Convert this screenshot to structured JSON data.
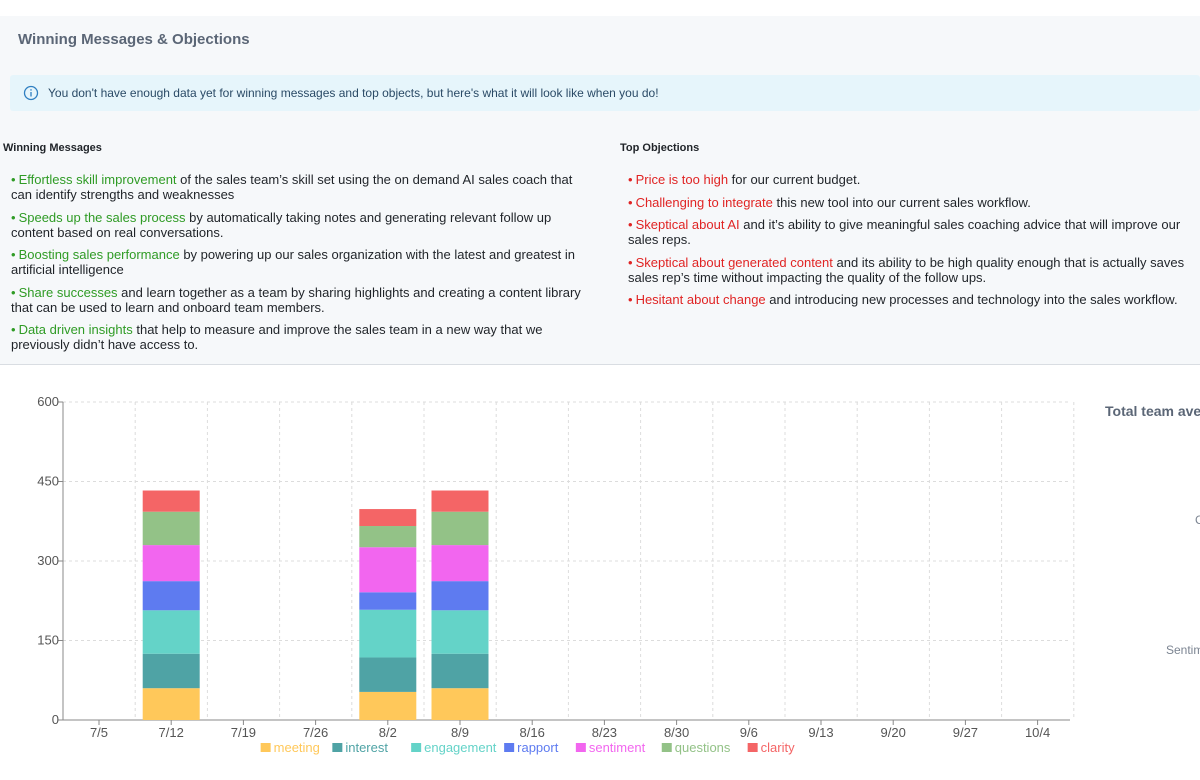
{
  "card": {
    "title": "Winning Messages & Objections",
    "info_icon": "info-circle-icon",
    "banner_text": "You don't have enough data yet for winning messages and top objects, but here's what it will look like when you do!",
    "winning_heading": "Winning Messages",
    "objections_heading": "Top Objections",
    "winning": [
      {
        "highlight": "Effortless skill improvement",
        "rest": " of the sales team’s skill set using the on demand AI sales coach that can identify strengths and weaknesses"
      },
      {
        "highlight": "Speeds up the sales process",
        "rest": " by automatically taking notes and generating relevant follow up content based on real conversations."
      },
      {
        "highlight": "Boosting sales performance",
        "rest": " by powering up our sales organization with the latest and greatest in artificial intelligence"
      },
      {
        "highlight": "Share successes",
        "rest": " and learn together as a team by sharing highlights and creating a content library that can be used to learn and onboard team members."
      },
      {
        "highlight": "Data driven insights",
        "rest": " that help to measure and improve the sales team in a new way that we previously didn’t have access to."
      }
    ],
    "objections": [
      {
        "highlight": "Price is too high",
        "rest": " for our current budget."
      },
      {
        "highlight": "Challenging to integrate",
        "rest": " this new tool into our current sales workflow."
      },
      {
        "highlight": "Skeptical about AI",
        "rest": " and it’s ability to give meaningful sales coaching advice that will improve our sales reps."
      },
      {
        "highlight": "Skeptical about generated content",
        "rest": " and its ability to be high quality enough that is actually saves sales rep’s time without impacting the quality of the follow ups."
      },
      {
        "highlight": "Hesitant about change",
        "rest": " and introducing new processes and technology into the sales workflow."
      }
    ],
    "colors": {
      "winning": "#2f9b25",
      "objection": "#e02424"
    }
  },
  "right_panel": {
    "title": "Total team ave",
    "fragments": [
      "C",
      "Sentim"
    ]
  },
  "chart_data": {
    "type": "bar",
    "stacked": true,
    "categories": [
      "7/5",
      "7/12",
      "7/19",
      "7/26",
      "8/2",
      "8/9",
      "8/16",
      "8/23",
      "8/30",
      "9/6",
      "9/13",
      "9/20",
      "9/27",
      "10/4"
    ],
    "ylim": [
      0,
      600
    ],
    "yticks": [
      0,
      150,
      300,
      450,
      600
    ],
    "grid": true,
    "legend_position": "bottom",
    "series": [
      {
        "name": "meeting",
        "color": "#ffc85a",
        "values": [
          0,
          60,
          0,
          0,
          53,
          60,
          0,
          0,
          0,
          0,
          0,
          0,
          0,
          0
        ]
      },
      {
        "name": "interest",
        "color": "#4fa3a5",
        "values": [
          0,
          65,
          0,
          0,
          65,
          65,
          0,
          0,
          0,
          0,
          0,
          0,
          0,
          0
        ]
      },
      {
        "name": "engagement",
        "color": "#64d3c8",
        "values": [
          0,
          82,
          0,
          0,
          90,
          82,
          0,
          0,
          0,
          0,
          0,
          0,
          0,
          0
        ]
      },
      {
        "name": "rapport",
        "color": "#5e7bf0",
        "values": [
          0,
          55,
          0,
          0,
          33,
          55,
          0,
          0,
          0,
          0,
          0,
          0,
          0,
          0
        ]
      },
      {
        "name": "sentiment",
        "color": "#f266ef",
        "values": [
          0,
          68,
          0,
          0,
          85,
          68,
          0,
          0,
          0,
          0,
          0,
          0,
          0,
          0
        ]
      },
      {
        "name": "questions",
        "color": "#93c287",
        "values": [
          0,
          63,
          0,
          0,
          40,
          63,
          0,
          0,
          0,
          0,
          0,
          0,
          0,
          0
        ]
      },
      {
        "name": "clarity",
        "color": "#f46566",
        "values": [
          0,
          40,
          0,
          0,
          32,
          40,
          0,
          0,
          0,
          0,
          0,
          0,
          0,
          0
        ]
      }
    ]
  }
}
